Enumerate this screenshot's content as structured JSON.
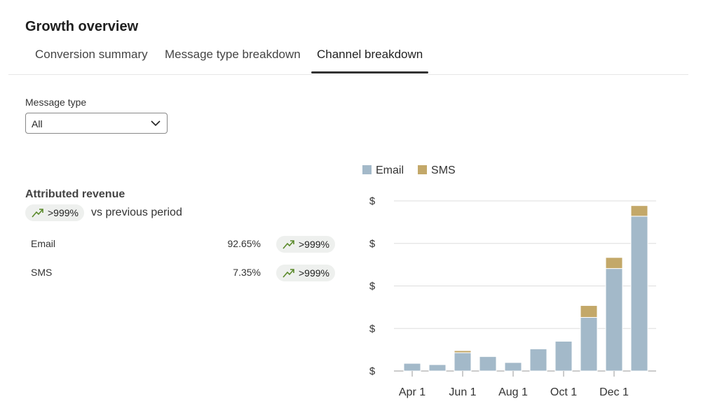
{
  "header": {
    "title": "Growth overview"
  },
  "tabs": [
    "Conversion summary",
    "Message type breakdown",
    "Channel breakdown"
  ],
  "filter": {
    "label": "Message type",
    "value": "All"
  },
  "summary": {
    "title": "Attributed revenue",
    "change": ">999%",
    "comparison": "vs previous period",
    "rows": [
      {
        "name": "Email",
        "share": "92.65%",
        "change": ">999%"
      },
      {
        "name": "SMS",
        "share": "7.35%",
        "change": ">999%"
      }
    ]
  },
  "chart_data": {
    "type": "stacked_bar",
    "categories": [
      "Apr 1",
      null,
      "Jun 1",
      null,
      "Aug 1",
      null,
      "Oct 1",
      null,
      "Dec 1",
      null
    ],
    "series": [
      {
        "name": "Email",
        "color": "#a3b9c9",
        "values": [
          0.18,
          0.15,
          0.43,
          0.34,
          0.2,
          0.52,
          0.7,
          1.26,
          2.41,
          3.64
        ]
      },
      {
        "name": "SMS",
        "color": "#c3a869",
        "values": [
          0,
          0,
          0.05,
          0,
          0,
          0,
          0,
          0.28,
          0.26,
          0.25
        ]
      }
    ],
    "ylim": [
      0,
      4
    ],
    "yticks": [
      {
        "value": 0,
        "label": "$"
      },
      {
        "value": 1,
        "label": "$"
      },
      {
        "value": 2,
        "label": "$"
      },
      {
        "value": 3,
        "label": "$"
      },
      {
        "value": 4,
        "label": "$"
      }
    ],
    "grid": true,
    "legend": "top"
  }
}
